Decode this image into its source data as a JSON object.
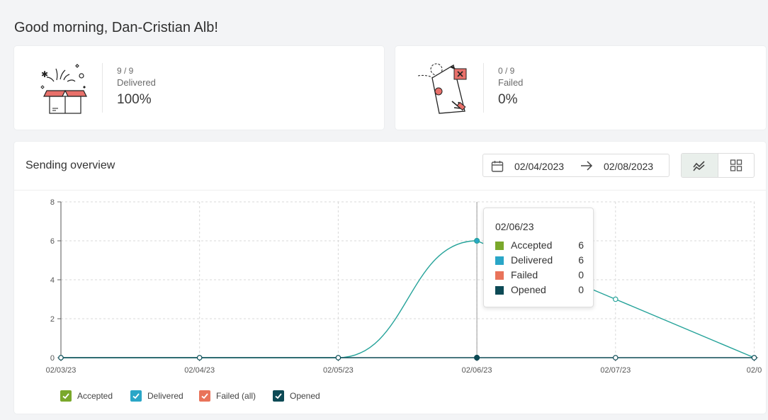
{
  "greeting": "Good morning, Dan-Cristian Alb!",
  "stats": {
    "delivered": {
      "count": "9 / 9",
      "label": "Delivered",
      "percent": "100%",
      "illustration": "open-gift-box-illustration"
    },
    "failed": {
      "count": "0 / 9",
      "label": "Failed",
      "percent": "0%",
      "illustration": "failed-letter-illustration"
    }
  },
  "overview": {
    "title": "Sending overview",
    "date_from": "02/04/2023",
    "date_to": "02/08/2023",
    "calendar_icon": "calendar-icon",
    "arrow_icon": "arrow-right-icon",
    "view_buttons": [
      {
        "icon": "line-chart-icon",
        "active": true
      },
      {
        "icon": "grid-icon",
        "active": false
      }
    ]
  },
  "tooltip": {
    "date": "02/06/23",
    "rows": [
      {
        "name": "Accepted",
        "value": "6",
        "color": "#7aa82b"
      },
      {
        "name": "Delivered",
        "value": "6",
        "color": "#2aa6c7"
      },
      {
        "name": "Failed",
        "value": "0",
        "color": "#e9735a"
      },
      {
        "name": "Opened",
        "value": "0",
        "color": "#0d4a55"
      }
    ]
  },
  "legend": [
    {
      "label": "Accepted",
      "color": "#7aa82b"
    },
    {
      "label": "Delivered",
      "color": "#2aa6c7"
    },
    {
      "label": "Failed (all)",
      "color": "#e9735a"
    },
    {
      "label": "Opened",
      "color": "#0d4a55"
    }
  ],
  "chart_data": {
    "type": "line",
    "categories": [
      "02/03/23",
      "02/04/23",
      "02/05/23",
      "02/06/23",
      "02/07/23",
      "02/0"
    ],
    "ylim": [
      0,
      8
    ],
    "yticks": [
      "0",
      "2",
      "4",
      "6",
      "8"
    ],
    "grid": true,
    "legend_position": "bottom-left",
    "series": [
      {
        "name": "Accepted",
        "values": [
          0,
          0,
          0,
          6,
          3,
          0
        ],
        "color": "#7aa82b"
      },
      {
        "name": "Delivered",
        "values": [
          0,
          0,
          0,
          6,
          3,
          0
        ],
        "color": "#2aa6c7"
      },
      {
        "name": "Failed",
        "values": [
          0,
          0,
          0,
          0,
          0,
          0
        ],
        "color": "#e9735a"
      },
      {
        "name": "Opened",
        "values": [
          0,
          0,
          0,
          0,
          0,
          0
        ],
        "color": "#0d4a55"
      }
    ],
    "line_color": "#26a39a"
  }
}
